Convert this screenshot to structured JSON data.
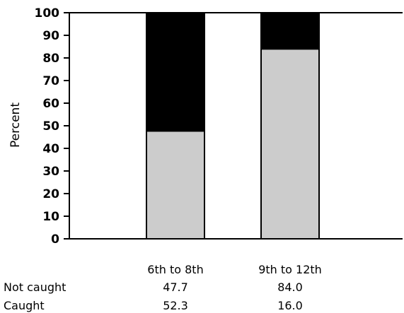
{
  "chart_data": {
    "type": "bar",
    "stacked": true,
    "ylabel": "Percent",
    "xlabel": "",
    "ylim": [
      0,
      100
    ],
    "yticks": [
      0,
      10,
      20,
      30,
      40,
      50,
      60,
      70,
      80,
      90,
      100
    ],
    "categories": [
      "6th to 8th",
      "9th to 12th"
    ],
    "series": [
      {
        "name": "Not caught",
        "values": [
          47.7,
          84.0
        ],
        "display": [
          "47.7",
          "84.0"
        ],
        "color": "#cccccc"
      },
      {
        "name": "Caught",
        "values": [
          52.3,
          16.0
        ],
        "display": [
          "52.3",
          "16.0"
        ],
        "color": "#000000"
      }
    ],
    "grid": false,
    "legend": "none"
  }
}
